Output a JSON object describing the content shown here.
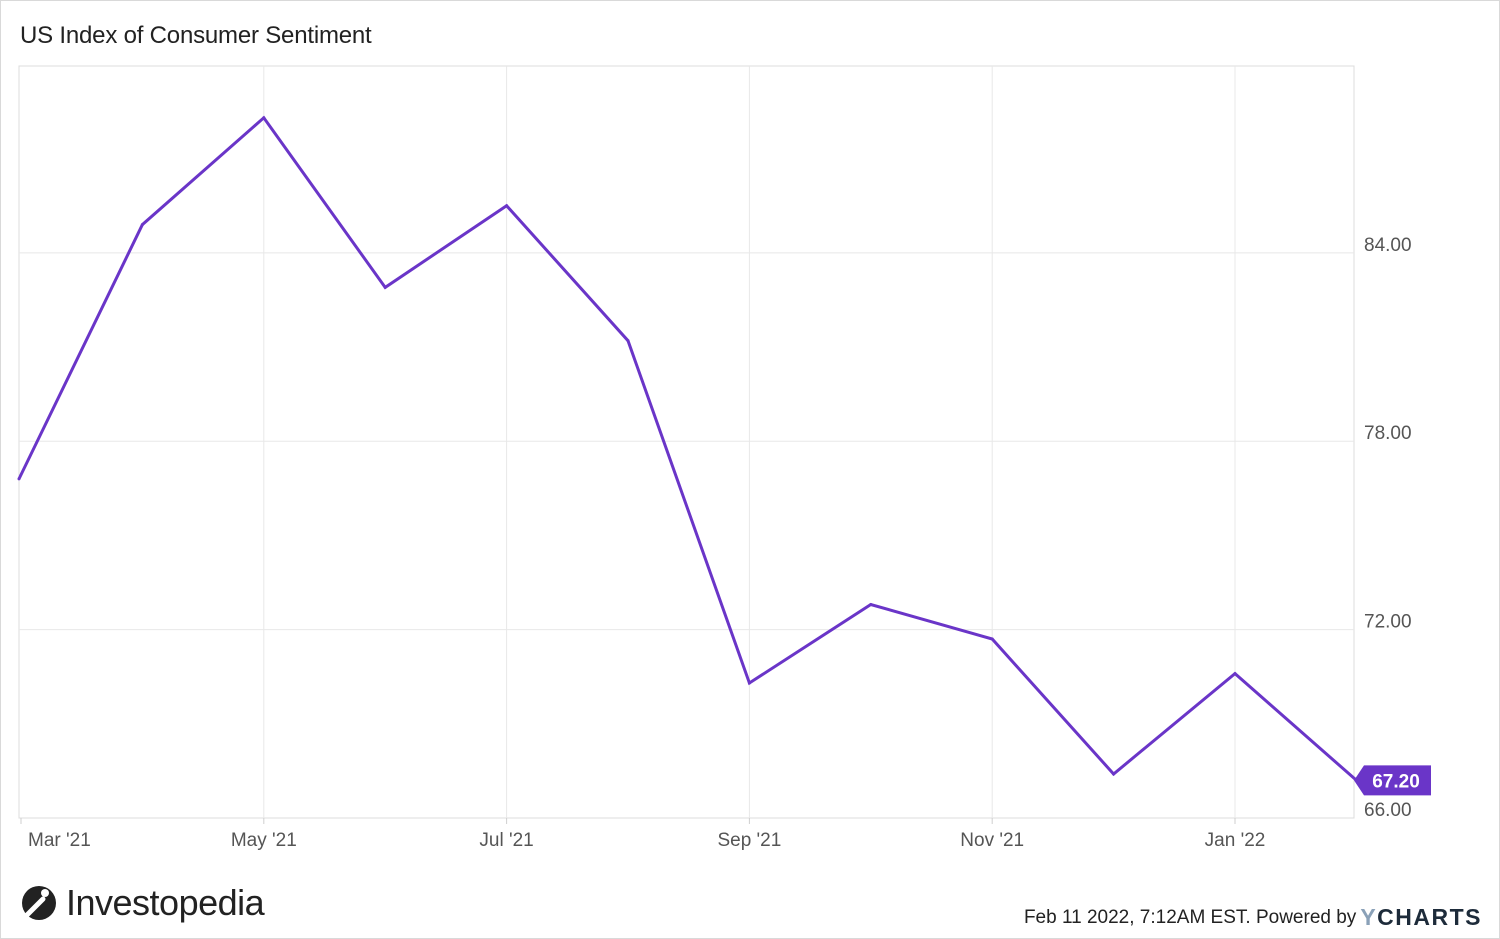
{
  "title": "US Index of Consumer Sentiment",
  "logo_text": "Investopedia",
  "footer": {
    "timestamp": "Feb 11 2022, 7:12AM EST.",
    "powered_by": "Powered by",
    "brand_y": "Y",
    "brand_rest": "CHARTS"
  },
  "colors": {
    "line": "#6a35c8",
    "grid": "#e8e8e8",
    "axis_text": "#555555",
    "tag_bg": "#6a35c8"
  },
  "chart_data": {
    "type": "line",
    "title": "US Index of Consumer Sentiment",
    "x_ticks": [
      "Mar '21",
      "May '21",
      "Jul '21",
      "Sep '21",
      "Nov '21",
      "Jan '22"
    ],
    "y_ticks": [
      "84.00",
      "78.00",
      "72.00",
      "66.00"
    ],
    "y_tick_values": [
      84,
      78,
      72,
      66
    ],
    "ylim": [
      66,
      89.95
    ],
    "x": [
      "2021-03",
      "2021-04",
      "2021-05",
      "2021-06",
      "2021-07",
      "2021-08",
      "2021-09",
      "2021-10",
      "2021-11",
      "2021-12",
      "2022-01",
      "2022-02"
    ],
    "series": [
      {
        "values": [
          76.8,
          84.9,
          88.3,
          82.9,
          85.5,
          81.2,
          70.3,
          72.8,
          71.7,
          67.4,
          70.6,
          67.2
        ]
      }
    ],
    "last_value_label": "67.20",
    "grid": true,
    "y_axis_position": "right"
  }
}
